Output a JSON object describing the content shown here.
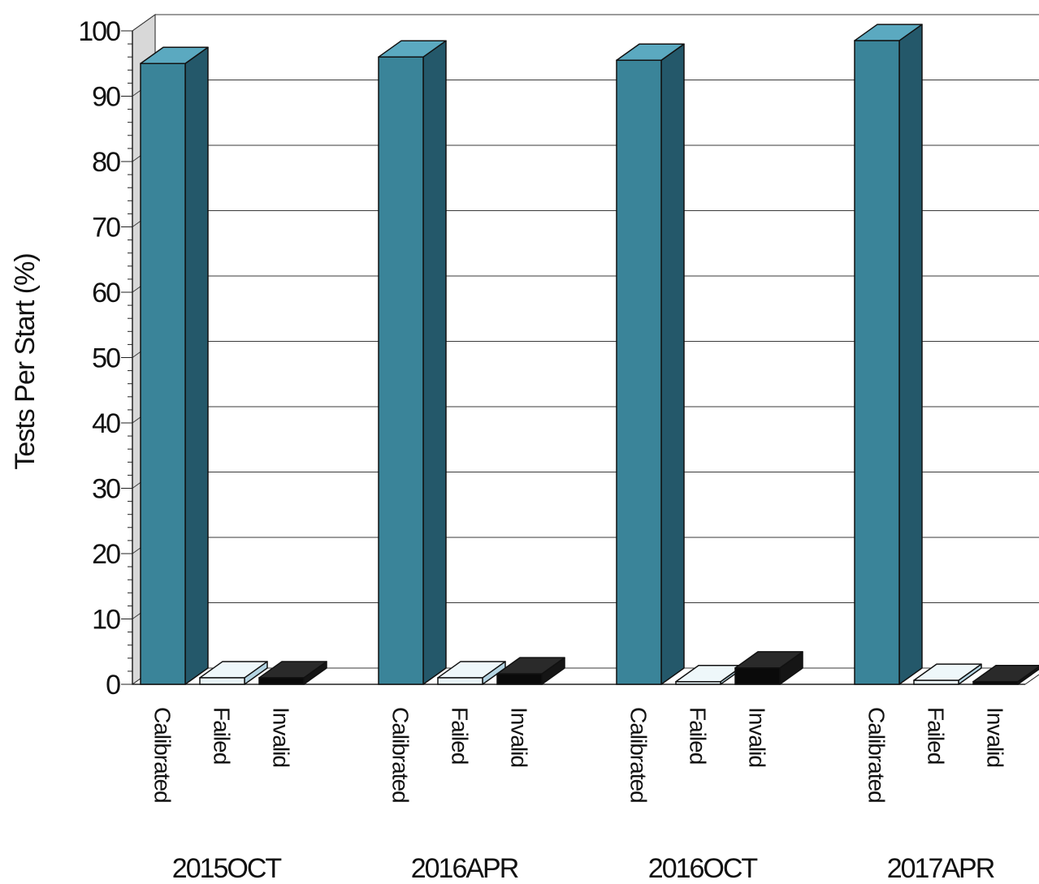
{
  "chart_data": {
    "type": "bar",
    "title": "",
    "xlabel": "",
    "ylabel": "Tests Per Start (%)",
    "ylim": [
      0,
      100
    ],
    "yticks": [
      0,
      10,
      20,
      30,
      40,
      50,
      60,
      70,
      80,
      90,
      100
    ],
    "grid": true,
    "categories": [
      "Calibrated",
      "Failed",
      "Invalid"
    ],
    "groups": [
      {
        "name": "2015OCT",
        "values": [
          95,
          1,
          1
        ]
      },
      {
        "name": "2016APR",
        "values": [
          96,
          1,
          1.6
        ]
      },
      {
        "name": "2016OCT",
        "values": [
          95.5,
          0.4,
          2.5
        ]
      },
      {
        "name": "2017APR",
        "values": [
          98.5,
          0.6,
          0.4
        ]
      }
    ],
    "colors": {
      "Calibrated": {
        "front": "#3a8499",
        "side": "#24586a",
        "top": "#5ba9c0"
      },
      "Failed": {
        "front": "#e8f3f7",
        "side": "#b4d4e2",
        "top": "#eef7fa"
      },
      "Invalid": {
        "front": "#0a0a0a",
        "side": "#151515",
        "top": "#2a2a2a"
      },
      "grid": "#3a3a3a",
      "wall": "#d8d8d8"
    }
  }
}
